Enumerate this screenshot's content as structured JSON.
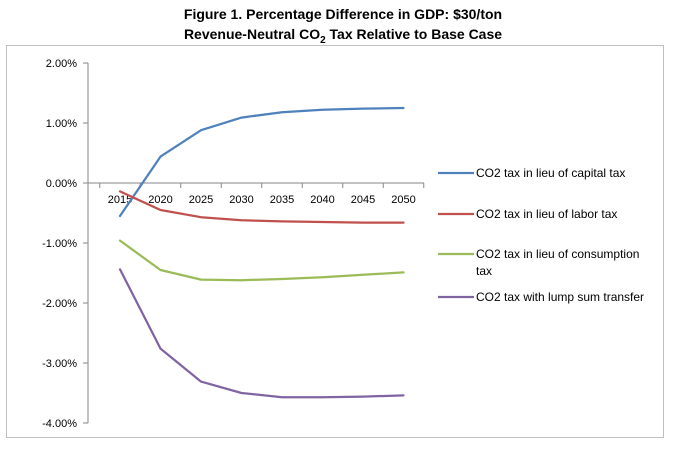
{
  "title_line1": "Figure 1. Percentage Difference in GDP: $30/ton",
  "title_line2_prefix": "Revenue-Neutral CO",
  "title_line2_sub": "2",
  "title_line2_suffix": " Tax Relative to Base Case",
  "chart_data": {
    "type": "line",
    "x": [
      2015,
      2020,
      2025,
      2030,
      2035,
      2040,
      2045,
      2050
    ],
    "x_tick_labels": [
      "2015",
      "2020",
      "2025",
      "2030",
      "2035",
      "2040",
      "2045",
      "2050"
    ],
    "y_tick_labels": [
      "2.00%",
      "1.00%",
      "0.00%",
      "-1.00%",
      "-2.00%",
      "-3.00%",
      "-4.00%"
    ],
    "ylim": [
      -4,
      2
    ],
    "grid": false,
    "legend_position": "right",
    "series": [
      {
        "name": "CO2 tax in lieu of capital tax",
        "name_lines": [
          "CO2 tax in lieu of capital tax"
        ],
        "color": "#4f81bd",
        "values": [
          -0.55,
          0.44,
          0.88,
          1.09,
          1.18,
          1.22,
          1.24,
          1.25
        ]
      },
      {
        "name": "CO2 tax in lieu of labor tax",
        "name_lines": [
          "CO2 tax in lieu of labor tax"
        ],
        "color": "#c0504d",
        "values": [
          -0.14,
          -0.45,
          -0.57,
          -0.62,
          -0.64,
          -0.65,
          -0.66,
          -0.66
        ]
      },
      {
        "name": "CO2 tax in lieu of consumption tax",
        "name_lines": [
          "CO2 tax in lieu of consumption",
          "tax"
        ],
        "color": "#9bbb59",
        "values": [
          -0.96,
          -1.45,
          -1.61,
          -1.62,
          -1.6,
          -1.57,
          -1.53,
          -1.49
        ]
      },
      {
        "name": "CO2 tax with lump sum transfer",
        "name_lines": [
          "CO2 tax with lump sum transfer"
        ],
        "color": "#8064a2",
        "values": [
          -1.44,
          -2.76,
          -3.31,
          -3.5,
          -3.57,
          -3.57,
          -3.56,
          -3.54
        ]
      }
    ]
  }
}
